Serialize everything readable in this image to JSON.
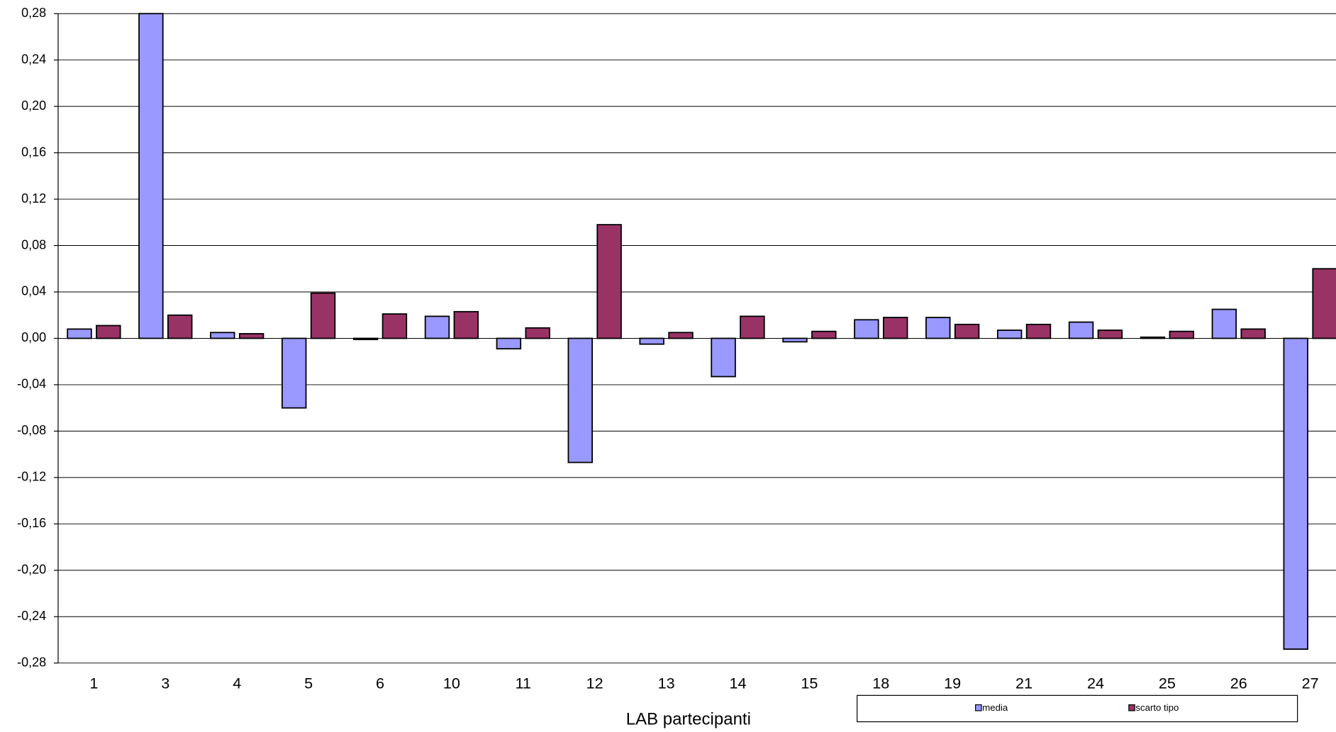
{
  "chart_data": {
    "type": "bar",
    "x_label": "LAB partecipanti",
    "categories": [
      "1",
      "3",
      "4",
      "5",
      "6",
      "10",
      "11",
      "12",
      "13",
      "14",
      "15",
      "18",
      "19",
      "21",
      "24",
      "25",
      "26",
      "27"
    ],
    "series": [
      {
        "name": "media",
        "color": "#9999ff",
        "values": [
          0.008,
          0.28,
          0.005,
          -0.06,
          -0.001,
          0.019,
          -0.009,
          -0.107,
          -0.005,
          -0.033,
          -0.003,
          0.016,
          0.018,
          0.007,
          0.014,
          0.001,
          0.025,
          -0.268
        ]
      },
      {
        "name": "scarto tipo",
        "color": "#993366",
        "values": [
          0.011,
          0.02,
          0.004,
          0.039,
          0.021,
          0.023,
          0.009,
          0.098,
          0.005,
          0.019,
          0.006,
          0.018,
          0.012,
          0.012,
          0.007,
          0.006,
          0.008,
          0.06
        ]
      }
    ],
    "ylim": [
      -0.28,
      0.28
    ],
    "yticks": [
      {
        "value": -0.28,
        "label": "-0,28"
      },
      {
        "value": -0.24,
        "label": "-0,24"
      },
      {
        "value": -0.2,
        "label": "-0,20"
      },
      {
        "value": -0.16,
        "label": "-0,16"
      },
      {
        "value": -0.12,
        "label": "-0,12"
      },
      {
        "value": -0.08,
        "label": "-0,08"
      },
      {
        "value": -0.04,
        "label": "-0,04"
      },
      {
        "value": 0,
        "label": "0,00"
      },
      {
        "value": 0.04,
        "label": "0,04"
      },
      {
        "value": 0.08,
        "label": "0,08"
      },
      {
        "value": 0.12,
        "label": "0,12"
      },
      {
        "value": 0.16,
        "label": "0,16"
      },
      {
        "value": 0.2,
        "label": "0,20"
      },
      {
        "value": 0.24,
        "label": "0,24"
      },
      {
        "value": 0.28,
        "label": "0,28"
      }
    ],
    "grid": true,
    "legend": "bottom-right"
  }
}
